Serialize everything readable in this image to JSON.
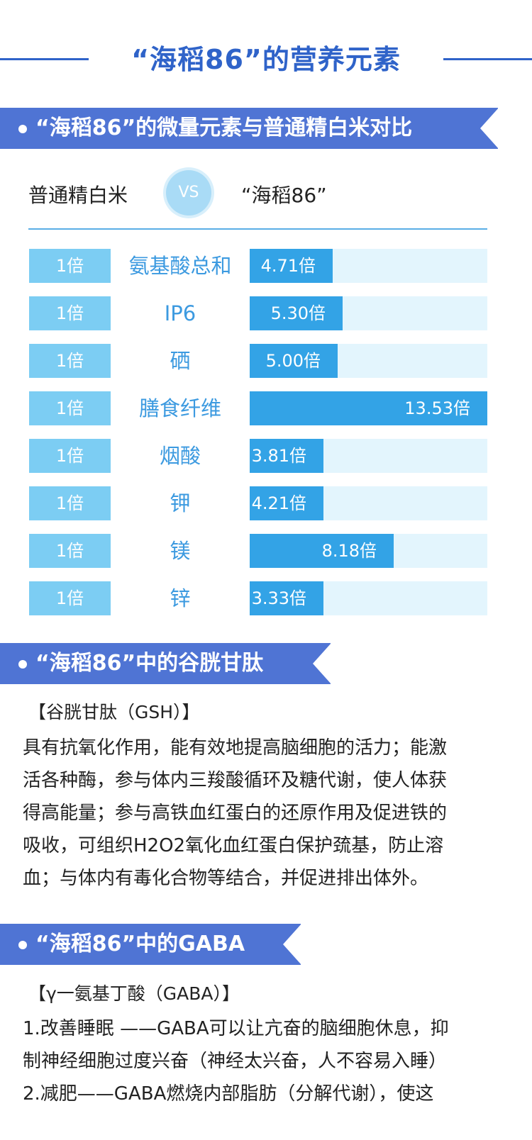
{
  "main_title": "“海稻86”的营养元素",
  "section1": {
    "banner": "“海稻86”的微量元素与普通精白米对比",
    "left_label": "普通精白米",
    "vs": "VS",
    "right_label": "“海稻86”",
    "rows": [
      {
        "base": "1倍",
        "name": "氨基酸总和",
        "value_label": "4.71倍",
        "value": 4.71
      },
      {
        "base": "1倍",
        "name": "IP6",
        "value_label": "5.30倍",
        "value": 5.3
      },
      {
        "base": "1倍",
        "name": "硒",
        "value_label": "5.00倍",
        "value": 5.0
      },
      {
        "base": "1倍",
        "name": "膳食纤维",
        "value_label": "13.53倍",
        "value": 13.53
      },
      {
        "base": "1倍",
        "name": "烟酸",
        "value_label": "3.81倍",
        "value": 3.81
      },
      {
        "base": "1倍",
        "name": "钾",
        "value_label": "4.21倍",
        "value": 4.21
      },
      {
        "base": "1倍",
        "name": "镁",
        "value_label": "8.18倍",
        "value": 8.18
      },
      {
        "base": "1倍",
        "name": "锌",
        "value_label": "3.33倍",
        "value": 3.33
      }
    ]
  },
  "section2": {
    "banner": "“海稻86”中的谷胱甘肽",
    "label": "【谷胱甘肽（GSH）】",
    "lines": [
      "具有抗氧化作用，能有效地提高脑细胞的活力；能激",
      "活各种酶，参与体内三羧酸循环及糖代谢，使人体获",
      "得高能量；参与高铁血红蛋白的还原作用及促进铁的",
      "吸收，可组织H2O2氧化血红蛋白保护巯基，防止溶",
      "血；与体内有毒化合物等结合，并促进排出体外。"
    ]
  },
  "section3": {
    "banner": "“海稻86”中的GABA",
    "label": "【γ一氨基丁酸（GABA）】",
    "lines": [
      "1.改善睡眠 ——GABA可以让亢奋的脑细胞休息，抑",
      "制神经细胞过度兴奋（神经太兴奋，人不容易入睡）",
      "2.减肥——GABA燃烧内部脂肪（分解代谢），使这"
    ]
  },
  "colors": {
    "title_blue": "#2f63c9",
    "banner_blue": "#4f74d4",
    "bar_fill": "#33a3e6",
    "bar_track": "#e3f5fd",
    "base_box": "#7ccdf3",
    "nutrient_text": "#3c9ae0"
  }
}
